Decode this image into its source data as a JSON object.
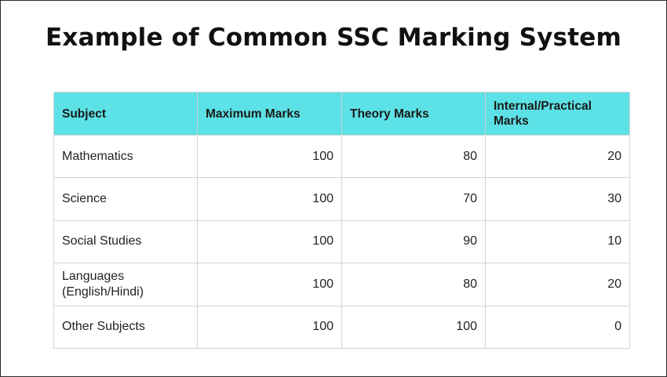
{
  "title": "Example of Common SSC Marking System",
  "table": {
    "headers": [
      "Subject",
      "Maximum Marks",
      "Theory Marks",
      "Internal/Practical Marks"
    ],
    "rows": [
      [
        "Mathematics",
        "100",
        "80",
        "20"
      ],
      [
        "Science",
        "100",
        "70",
        "30"
      ],
      [
        "Social Studies",
        "100",
        "90",
        "10"
      ],
      [
        "Languages (English/Hindi)",
        "100",
        "80",
        "20"
      ],
      [
        "Other Subjects",
        "100",
        "100",
        "0"
      ]
    ]
  },
  "colors": {
    "header_bg": "#5ce1e6",
    "border": "#d4d4d4"
  }
}
